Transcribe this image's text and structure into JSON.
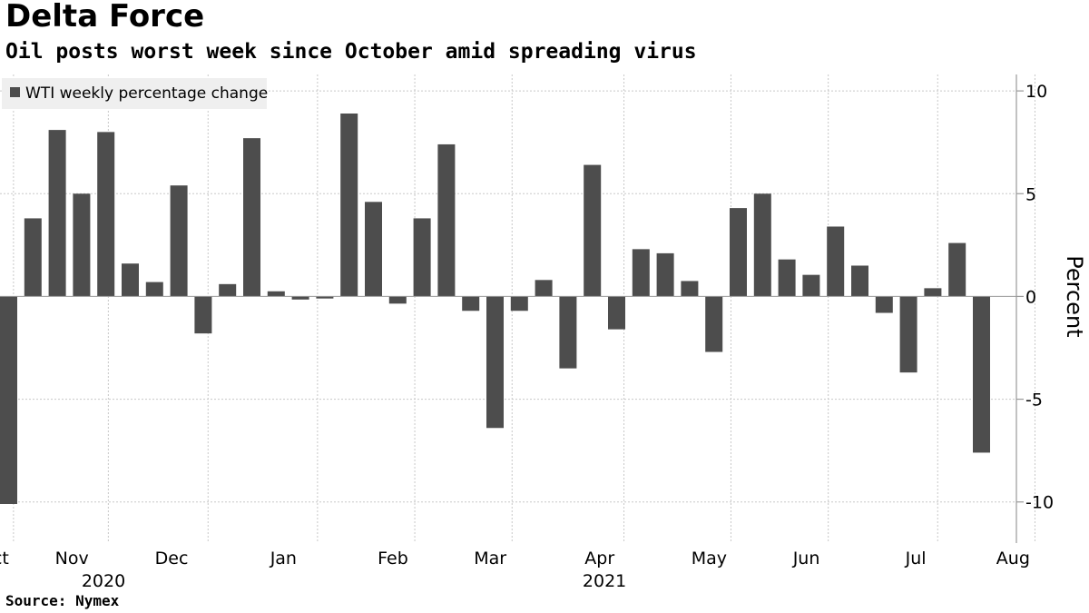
{
  "header": {
    "title": "Delta Force",
    "subtitle": "Oil posts worst week since October amid spreading virus"
  },
  "footer": {
    "source": "Source:  Nymex"
  },
  "colors": {
    "bar": "#4d4d4d",
    "grid": "#c8c8c8",
    "axis": "#999999",
    "legend_bg": "#efefef",
    "text": "#000000"
  },
  "chart_data": {
    "type": "bar",
    "legend": {
      "position": "top-left",
      "label": "WTI weekly percentage change"
    },
    "ylabel": "Percent",
    "ylim": [
      -12,
      10.8
    ],
    "yticks": [
      10,
      5,
      0,
      -5,
      -10
    ],
    "y_axis_side": "right",
    "grid": true,
    "x_tick_labels": [
      "Oct",
      "Nov",
      "Dec",
      "Jan",
      "Feb",
      "Mar",
      "Apr",
      "May",
      "Jun",
      "Jul",
      "Aug"
    ],
    "x_tick_positions": [
      -0.6,
      2.6,
      6.7,
      11.3,
      15.8,
      19.8,
      24.3,
      28.8,
      32.8,
      37.3,
      41.3
    ],
    "x_month_boundaries": [
      0.2,
      4.1,
      8.2,
      12.7,
      16.7,
      20.7,
      25.3,
      29.7,
      33.7,
      38.2,
      42.2
    ],
    "year_labels": [
      {
        "label": "2020",
        "position": 3.9
      },
      {
        "label": "2021",
        "position": 24.5
      }
    ],
    "series": [
      {
        "values": [
          -10.1,
          3.8,
          8.1,
          5.0,
          8.0,
          1.6,
          0.7,
          5.4,
          -1.8,
          0.6,
          7.7,
          0.25,
          -0.15,
          -0.1,
          8.9,
          4.6,
          -0.35,
          3.8,
          7.4,
          -0.7,
          -6.4,
          -0.7,
          0.8,
          -3.5,
          6.4,
          -1.6,
          2.3,
          2.1,
          0.75,
          -2.7,
          4.3,
          5.0,
          1.8,
          1.05,
          3.4,
          1.5,
          -0.8,
          -3.7,
          0.4,
          2.6,
          -7.6
        ]
      }
    ]
  }
}
